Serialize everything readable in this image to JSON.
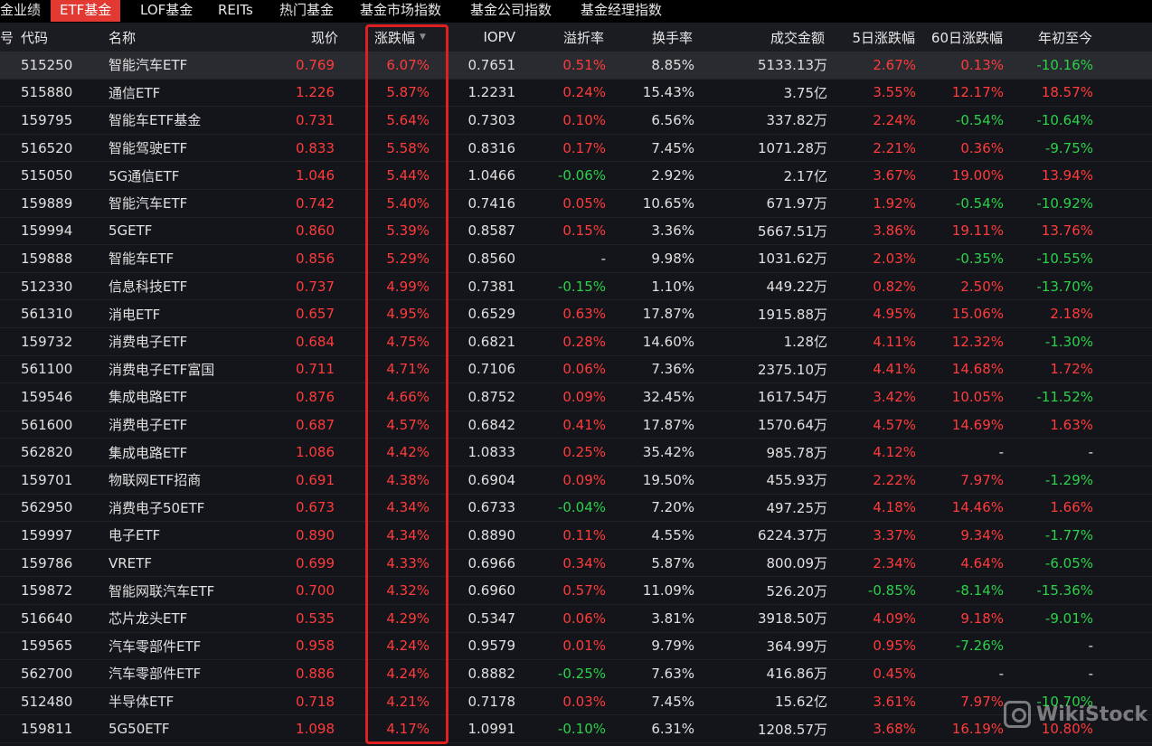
{
  "tabs": [
    {
      "label": "金业绩",
      "active": false
    },
    {
      "label": "ETF基金",
      "active": true
    },
    {
      "label": "LOF基金",
      "active": false
    },
    {
      "label": "REITs",
      "active": false
    },
    {
      "label": "热门基金",
      "active": false
    },
    {
      "label": "基金市场指数",
      "active": false
    },
    {
      "label": "基金公司指数",
      "active": false
    },
    {
      "label": "基金经理指数",
      "active": false
    }
  ],
  "columns": {
    "idx": "号",
    "code": "代码",
    "name": "名称",
    "price": "现价",
    "change": "涨跌幅",
    "iopv": "IOPV",
    "premium": "溢折率",
    "turnover": "换手率",
    "amount": "成交金额",
    "d5": "5日涨跌幅",
    "d60": "60日涨跌幅",
    "ytd": "年初至今"
  },
  "sort": {
    "column": "change",
    "direction": "desc",
    "icon": "sort-desc-icon"
  },
  "colors": {
    "up": "#ff3b3b",
    "down": "#2bd14a",
    "flat": "#e0e0e0",
    "accent": "#e23a33",
    "highlight": "#e02020"
  },
  "rows": [
    {
      "code": "515250",
      "name": "智能汽车ETF",
      "price": "0.769",
      "change": "6.07%",
      "iopv": "0.7651",
      "premium": "0.51%",
      "turnover": "8.85%",
      "amount": "5133.13万",
      "d5": "2.67%",
      "d60": "0.13%",
      "ytd": "-10.16%"
    },
    {
      "code": "515880",
      "name": "通信ETF",
      "price": "1.226",
      "change": "5.87%",
      "iopv": "1.2231",
      "premium": "0.24%",
      "turnover": "15.43%",
      "amount": "3.75亿",
      "d5": "3.55%",
      "d60": "12.17%",
      "ytd": "18.57%"
    },
    {
      "code": "159795",
      "name": "智能车ETF基金",
      "price": "0.731",
      "change": "5.64%",
      "iopv": "0.7303",
      "premium": "0.10%",
      "turnover": "6.56%",
      "amount": "337.82万",
      "d5": "2.24%",
      "d60": "-0.54%",
      "ytd": "-10.64%"
    },
    {
      "code": "516520",
      "name": "智能驾驶ETF",
      "price": "0.833",
      "change": "5.58%",
      "iopv": "0.8316",
      "premium": "0.17%",
      "turnover": "7.45%",
      "amount": "1071.28万",
      "d5": "2.21%",
      "d60": "0.36%",
      "ytd": "-9.75%"
    },
    {
      "code": "515050",
      "name": "5G通信ETF",
      "price": "1.046",
      "change": "5.44%",
      "iopv": "1.0466",
      "premium": "-0.06%",
      "turnover": "2.92%",
      "amount": "2.17亿",
      "d5": "3.67%",
      "d60": "19.00%",
      "ytd": "13.94%"
    },
    {
      "code": "159889",
      "name": "智能汽车ETF",
      "price": "0.742",
      "change": "5.40%",
      "iopv": "0.7416",
      "premium": "0.05%",
      "turnover": "10.65%",
      "amount": "671.97万",
      "d5": "1.92%",
      "d60": "-0.54%",
      "ytd": "-10.92%"
    },
    {
      "code": "159994",
      "name": "5GETF",
      "price": "0.860",
      "change": "5.39%",
      "iopv": "0.8587",
      "premium": "0.15%",
      "turnover": "3.36%",
      "amount": "5667.51万",
      "d5": "3.86%",
      "d60": "19.11%",
      "ytd": "13.76%"
    },
    {
      "code": "159888",
      "name": "智能车ETF",
      "price": "0.856",
      "change": "5.29%",
      "iopv": "0.8560",
      "premium": "-",
      "turnover": "9.98%",
      "amount": "1031.62万",
      "d5": "2.03%",
      "d60": "-0.35%",
      "ytd": "-10.55%"
    },
    {
      "code": "512330",
      "name": "信息科技ETF",
      "price": "0.737",
      "change": "4.99%",
      "iopv": "0.7381",
      "premium": "-0.15%",
      "turnover": "1.10%",
      "amount": "449.22万",
      "d5": "0.82%",
      "d60": "2.50%",
      "ytd": "-13.70%"
    },
    {
      "code": "561310",
      "name": "消电ETF",
      "price": "0.657",
      "change": "4.95%",
      "iopv": "0.6529",
      "premium": "0.63%",
      "turnover": "17.87%",
      "amount": "1915.88万",
      "d5": "4.95%",
      "d60": "15.06%",
      "ytd": "2.18%"
    },
    {
      "code": "159732",
      "name": "消费电子ETF",
      "price": "0.684",
      "change": "4.75%",
      "iopv": "0.6821",
      "premium": "0.28%",
      "turnover": "14.60%",
      "amount": "1.28亿",
      "d5": "4.11%",
      "d60": "12.32%",
      "ytd": "-1.30%"
    },
    {
      "code": "561100",
      "name": "消费电子ETF富国",
      "price": "0.711",
      "change": "4.71%",
      "iopv": "0.7106",
      "premium": "0.06%",
      "turnover": "7.36%",
      "amount": "2375.10万",
      "d5": "4.41%",
      "d60": "14.68%",
      "ytd": "1.72%"
    },
    {
      "code": "159546",
      "name": "集成电路ETF",
      "price": "0.876",
      "change": "4.66%",
      "iopv": "0.8752",
      "premium": "0.09%",
      "turnover": "32.45%",
      "amount": "1617.54万",
      "d5": "3.42%",
      "d60": "10.05%",
      "ytd": "-11.52%"
    },
    {
      "code": "561600",
      "name": "消费电子ETF",
      "price": "0.687",
      "change": "4.57%",
      "iopv": "0.6842",
      "premium": "0.41%",
      "turnover": "17.87%",
      "amount": "1570.64万",
      "d5": "4.57%",
      "d60": "14.69%",
      "ytd": "1.63%"
    },
    {
      "code": "562820",
      "name": "集成电路ETF",
      "price": "1.086",
      "change": "4.42%",
      "iopv": "1.0833",
      "premium": "0.25%",
      "turnover": "35.42%",
      "amount": "985.78万",
      "d5": "4.12%",
      "d60": "-",
      "ytd": "-"
    },
    {
      "code": "159701",
      "name": "物联网ETF招商",
      "price": "0.691",
      "change": "4.38%",
      "iopv": "0.6904",
      "premium": "0.09%",
      "turnover": "19.50%",
      "amount": "455.93万",
      "d5": "2.22%",
      "d60": "7.97%",
      "ytd": "-1.29%"
    },
    {
      "code": "562950",
      "name": "消费电子50ETF",
      "price": "0.673",
      "change": "4.34%",
      "iopv": "0.6733",
      "premium": "-0.04%",
      "turnover": "7.20%",
      "amount": "497.25万",
      "d5": "4.18%",
      "d60": "14.46%",
      "ytd": "1.66%"
    },
    {
      "code": "159997",
      "name": "电子ETF",
      "price": "0.890",
      "change": "4.34%",
      "iopv": "0.8890",
      "premium": "0.11%",
      "turnover": "4.55%",
      "amount": "6224.37万",
      "d5": "3.37%",
      "d60": "9.34%",
      "ytd": "-1.77%"
    },
    {
      "code": "159786",
      "name": "VRETF",
      "price": "0.699",
      "change": "4.33%",
      "iopv": "0.6966",
      "premium": "0.34%",
      "turnover": "5.87%",
      "amount": "800.09万",
      "d5": "2.34%",
      "d60": "4.64%",
      "ytd": "-6.05%"
    },
    {
      "code": "159872",
      "name": "智能网联汽车ETF",
      "price": "0.700",
      "change": "4.32%",
      "iopv": "0.6960",
      "premium": "0.57%",
      "turnover": "11.09%",
      "amount": "526.20万",
      "d5": "-0.85%",
      "d60": "-8.14%",
      "ytd": "-15.36%"
    },
    {
      "code": "516640",
      "name": "芯片龙头ETF",
      "price": "0.535",
      "change": "4.29%",
      "iopv": "0.5347",
      "premium": "0.06%",
      "turnover": "3.81%",
      "amount": "3918.50万",
      "d5": "4.09%",
      "d60": "9.18%",
      "ytd": "-9.01%"
    },
    {
      "code": "159565",
      "name": "汽车零部件ETF",
      "price": "0.958",
      "change": "4.24%",
      "iopv": "0.9579",
      "premium": "0.01%",
      "turnover": "9.79%",
      "amount": "364.99万",
      "d5": "0.95%",
      "d60": "-7.26%",
      "ytd": "-"
    },
    {
      "code": "562700",
      "name": "汽车零部件ETF",
      "price": "0.886",
      "change": "4.24%",
      "iopv": "0.8882",
      "premium": "-0.25%",
      "turnover": "7.63%",
      "amount": "416.86万",
      "d5": "0.45%",
      "d60": "-",
      "ytd": "-"
    },
    {
      "code": "512480",
      "name": "半导体ETF",
      "price": "0.718",
      "change": "4.21%",
      "iopv": "0.7178",
      "premium": "0.03%",
      "turnover": "7.45%",
      "amount": "15.62亿",
      "d5": "3.61%",
      "d60": "7.97%",
      "ytd": "-10.70%"
    },
    {
      "code": "159811",
      "name": "5G50ETF",
      "price": "1.098",
      "change": "4.17%",
      "iopv": "1.0991",
      "premium": "-0.10%",
      "turnover": "6.31%",
      "amount": "1208.57万",
      "d5": "3.68%",
      "d60": "16.19%",
      "ytd": "10.80%"
    }
  ],
  "watermark": {
    "text": "WikiStock"
  }
}
